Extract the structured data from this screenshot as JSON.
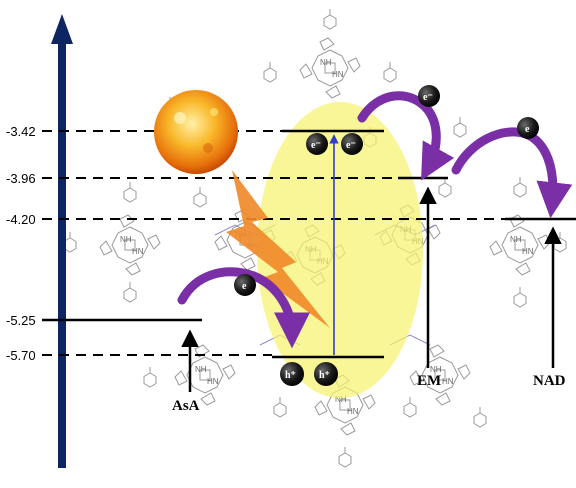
{
  "energy_levels": {
    "vb_edge": "-3.42",
    "em": "-3.96",
    "nad": "-4.20",
    "asa": "-5.25",
    "cb_edge": "-5.70"
  },
  "labels": {
    "asa": "AsA",
    "em": "EM",
    "nad": "NAD"
  },
  "charges": {
    "electron_small": "e",
    "electron_ball": "e⁻",
    "hole": "h⁺"
  },
  "molecule_text": {
    "nh": "NH",
    "hn": "HN",
    "n": "N",
    "h": "H"
  },
  "colors": {
    "ellipse": "#f5f36e",
    "arrow_purple": "#7a2fa6",
    "vertical_arrow": "#0d2560",
    "bolt": "#f08a2a",
    "transition_line": "#2f3fc9",
    "sun_core": "#f7a21b"
  }
}
